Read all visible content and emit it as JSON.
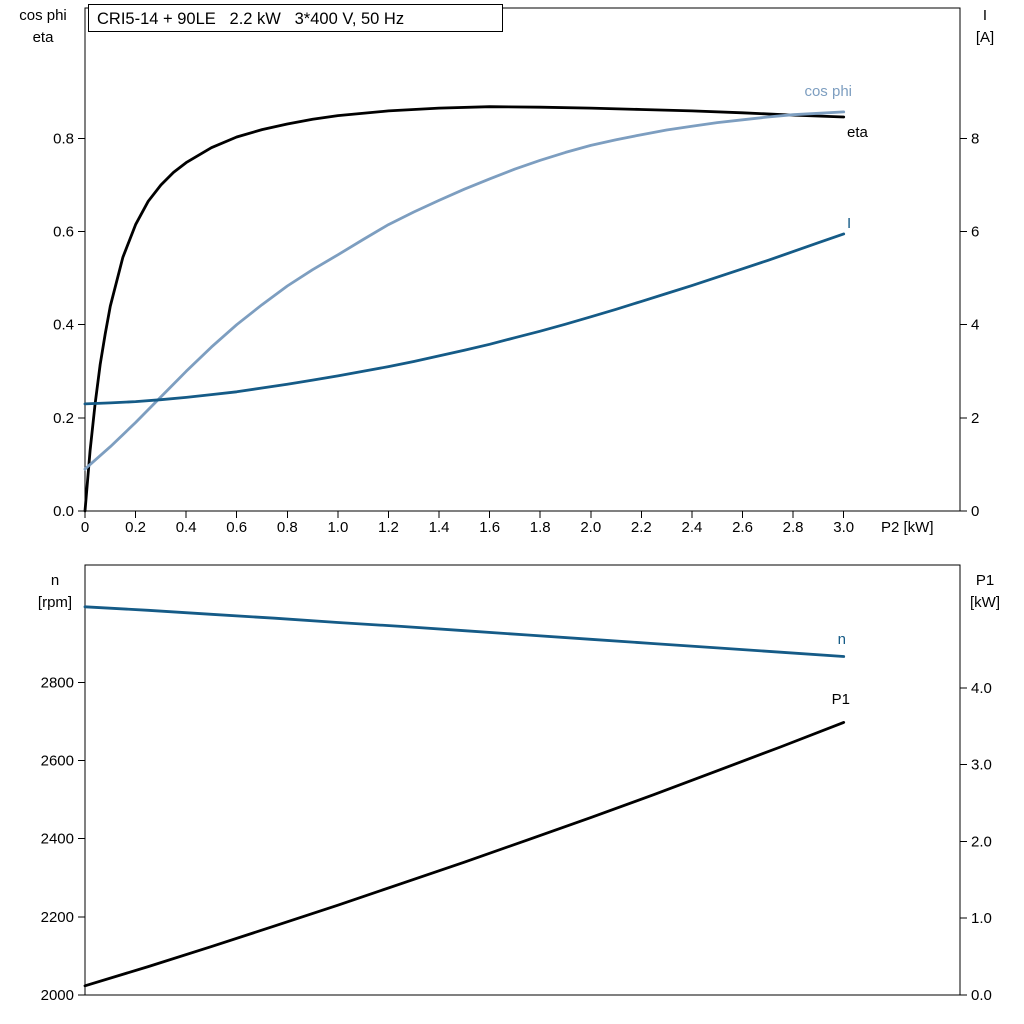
{
  "colors": {
    "black": "#000000",
    "dark_blue": "#155B87",
    "light_blue": "#7D9EC0",
    "background": "#FFFFFF"
  },
  "chart_data": [
    {
      "type": "line",
      "title": "CRI5-14 + 90LE   2.2 kW   3*400 V, 50 Hz",
      "grid": false,
      "legend_position": "curve-end-labels",
      "x_axis": {
        "label": "P2 [kW]",
        "min": 0,
        "max": 3.46,
        "tick_values": [
          0,
          0.2,
          0.4,
          0.6,
          0.8,
          1.0,
          1.2,
          1.4,
          1.6,
          1.8,
          2.0,
          2.2,
          2.4,
          2.6,
          2.8,
          3.0
        ],
        "tick_labels": [
          "0",
          "0.2",
          "0.4",
          "0.6",
          "0.8",
          "1.0",
          "1.2",
          "1.4",
          "1.6",
          "1.8",
          "2.0",
          "2.2",
          "2.4",
          "2.6",
          "2.8",
          "3.0"
        ]
      },
      "left_axis": {
        "label_lines": [
          "cos phi",
          "eta"
        ],
        "min": 0,
        "max": 1.08,
        "tick_values": [
          0,
          0.2,
          0.4,
          0.6,
          0.8
        ],
        "tick_labels": [
          "0.0",
          "0.2",
          "0.4",
          "0.6",
          "0.8"
        ]
      },
      "right_axis": {
        "label_lines": [
          "I",
          "[A]"
        ],
        "min": 0,
        "max": 10.8,
        "tick_values": [
          0,
          2,
          4,
          6,
          8
        ],
        "tick_labels": [
          "0",
          "2",
          "4",
          "6",
          "8"
        ]
      },
      "series": [
        {
          "id": "eta",
          "name": "eta",
          "axis": "left",
          "color": "#000000",
          "x": [
            0,
            0.02,
            0.04,
            0.06,
            0.08,
            0.1,
            0.15,
            0.2,
            0.25,
            0.3,
            0.35,
            0.4,
            0.5,
            0.6,
            0.7,
            0.8,
            0.9,
            1.0,
            1.2,
            1.4,
            1.6,
            1.8,
            2.0,
            2.2,
            2.4,
            2.6,
            2.8,
            3.0
          ],
          "y": [
            0,
            0.13,
            0.23,
            0.315,
            0.38,
            0.44,
            0.545,
            0.615,
            0.665,
            0.7,
            0.727,
            0.748,
            0.78,
            0.803,
            0.819,
            0.831,
            0.841,
            0.849,
            0.859,
            0.865,
            0.868,
            0.867,
            0.865,
            0.862,
            0.859,
            0.855,
            0.85,
            0.846
          ]
        },
        {
          "id": "cos_phi",
          "name": "cos phi",
          "axis": "left",
          "color": "#7D9EC0",
          "x": [
            0,
            0.1,
            0.2,
            0.3,
            0.4,
            0.5,
            0.6,
            0.7,
            0.8,
            0.9,
            1.0,
            1.1,
            1.2,
            1.3,
            1.4,
            1.5,
            1.6,
            1.7,
            1.8,
            1.9,
            2.0,
            2.1,
            2.2,
            2.3,
            2.4,
            2.5,
            2.6,
            2.7,
            2.8,
            2.9,
            3.0
          ],
          "y": [
            0.09,
            0.138,
            0.19,
            0.245,
            0.3,
            0.352,
            0.4,
            0.443,
            0.483,
            0.518,
            0.55,
            0.583,
            0.615,
            0.642,
            0.667,
            0.691,
            0.713,
            0.734,
            0.753,
            0.77,
            0.785,
            0.797,
            0.808,
            0.818,
            0.826,
            0.834,
            0.84,
            0.846,
            0.851,
            0.854,
            0.857
          ]
        },
        {
          "id": "I",
          "name": "I",
          "axis": "right",
          "color": "#155B87",
          "x": [
            0,
            0.1,
            0.2,
            0.3,
            0.4,
            0.5,
            0.6,
            0.7,
            0.8,
            0.9,
            1.0,
            1.1,
            1.2,
            1.3,
            1.4,
            1.5,
            1.6,
            1.7,
            1.8,
            1.9,
            2.0,
            2.1,
            2.2,
            2.3,
            2.4,
            2.5,
            2.6,
            2.7,
            2.8,
            2.9,
            3.0
          ],
          "y": [
            2.3,
            2.32,
            2.35,
            2.39,
            2.44,
            2.5,
            2.56,
            2.64,
            2.72,
            2.81,
            2.9,
            3.0,
            3.1,
            3.21,
            3.33,
            3.45,
            3.58,
            3.72,
            3.86,
            4.01,
            4.17,
            4.33,
            4.5,
            4.67,
            4.84,
            5.02,
            5.2,
            5.38,
            5.57,
            5.76,
            5.95
          ]
        }
      ]
    },
    {
      "type": "line",
      "title": "",
      "grid": false,
      "legend_position": "curve-end-labels",
      "x_axis": {
        "label": "",
        "min": 0,
        "max": 3.46,
        "tick_values": [],
        "tick_labels": []
      },
      "left_axis": {
        "label_lines": [
          "n",
          "[rpm]"
        ],
        "min": 2000,
        "max": 3100,
        "tick_values": [
          2000,
          2200,
          2400,
          2600,
          2800
        ],
        "tick_labels": [
          "2000",
          "2200",
          "2400",
          "2600",
          "2800"
        ]
      },
      "right_axis": {
        "label_lines": [
          "P1",
          "[kW]"
        ],
        "min": 0,
        "max": 5.6,
        "tick_values": [
          0,
          1,
          2,
          3,
          4
        ],
        "tick_labels": [
          "0.0",
          "1.0",
          "2.0",
          "3.0",
          "4.0"
        ]
      },
      "series": [
        {
          "id": "n",
          "name": "n",
          "axis": "left",
          "color": "#155B87",
          "x": [
            0,
            0.25,
            0.5,
            0.75,
            1.0,
            1.25,
            1.5,
            1.75,
            2.0,
            2.25,
            2.5,
            2.75,
            3.0
          ],
          "y": [
            2993,
            2984,
            2974,
            2964,
            2953,
            2943,
            2932,
            2921,
            2910,
            2899,
            2888,
            2877,
            2866
          ]
        },
        {
          "id": "P1",
          "name": "P1",
          "axis": "right",
          "color": "#000000",
          "x": [
            0,
            0.25,
            0.5,
            0.75,
            1.0,
            1.25,
            1.5,
            1.75,
            2.0,
            2.25,
            2.5,
            2.75,
            3.0
          ],
          "y": [
            0.12,
            0.37,
            0.63,
            0.9,
            1.17,
            1.45,
            1.73,
            2.02,
            2.31,
            2.61,
            2.92,
            3.23,
            3.55
          ]
        }
      ]
    }
  ]
}
